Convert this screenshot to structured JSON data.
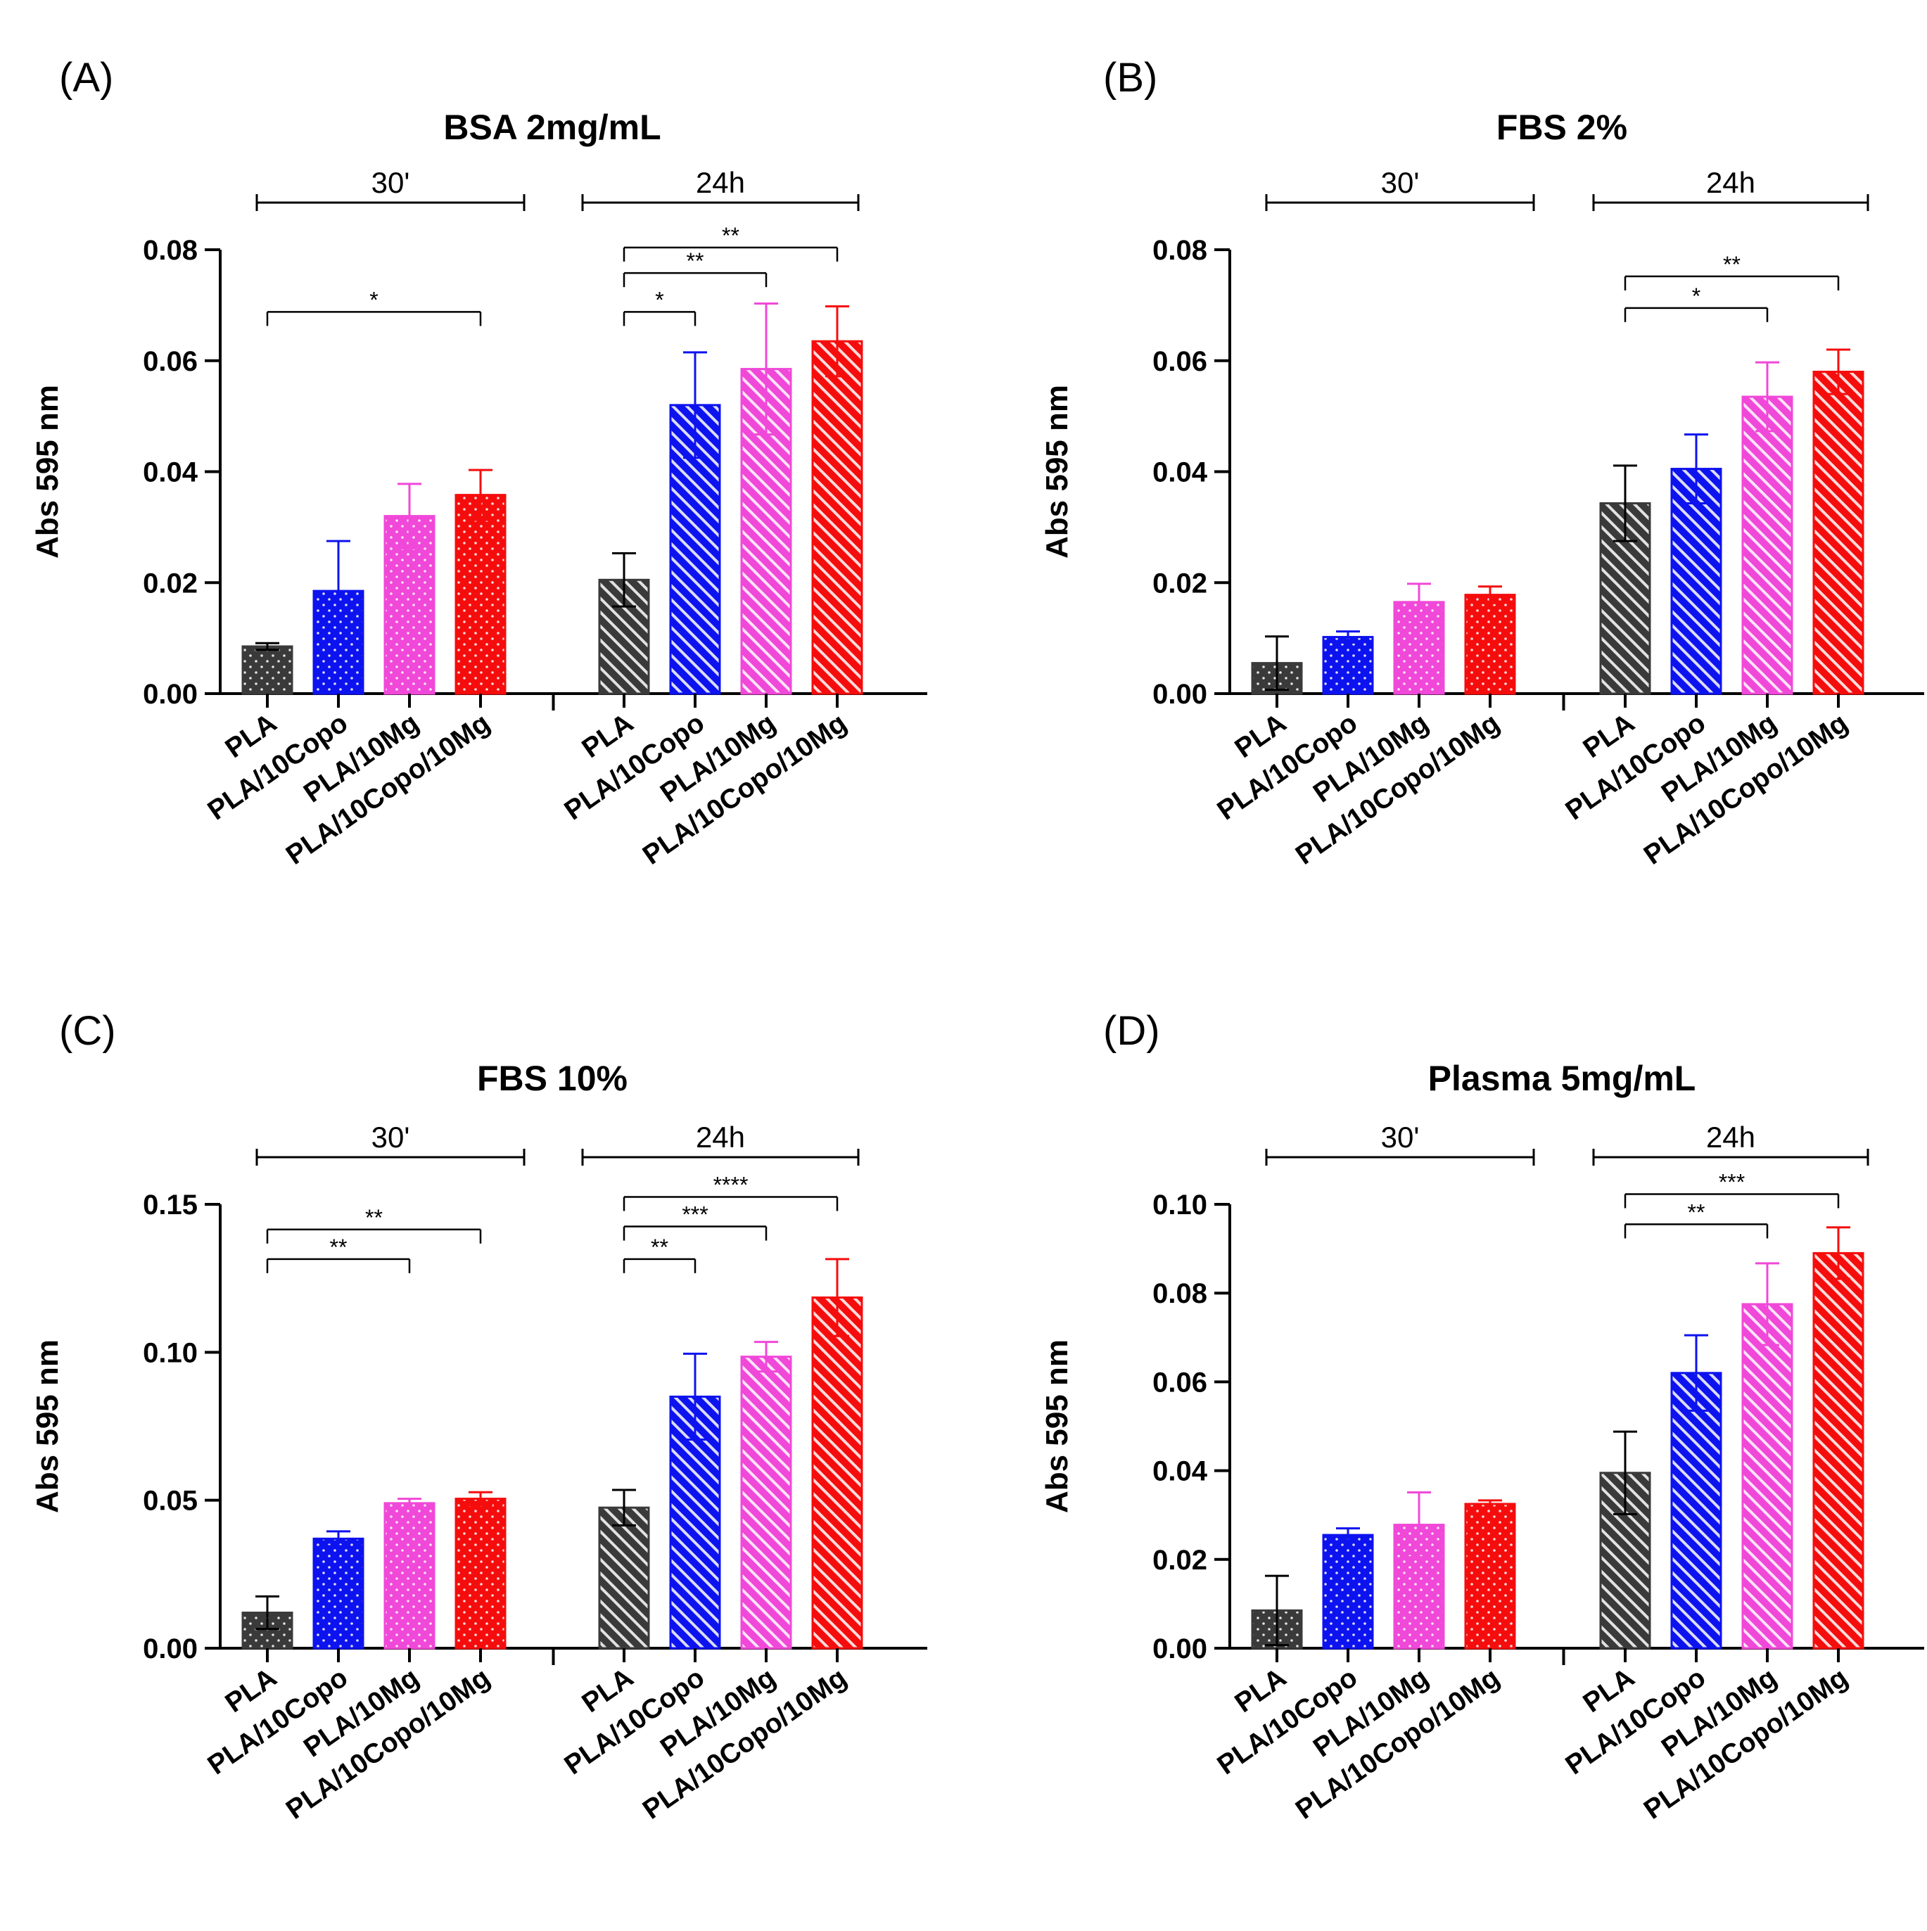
{
  "chart_data": [
    {
      "panel": "(A)",
      "type": "bar",
      "title": "BSA 2mg/mL",
      "ylabel": "Abs 595 nm",
      "ylim": [
        0,
        0.08
      ],
      "yticks": [
        "0.00",
        "0.02",
        "0.04",
        "0.06",
        "0.08"
      ],
      "ytick_values": [
        0,
        0.02,
        0.04,
        0.06,
        0.08
      ],
      "groups": [
        {
          "label": "30'",
          "pattern": "dots",
          "bars": [
            {
              "category": "PLA",
              "value": 0.0085,
              "error": 0.0006
            },
            {
              "category": "PLA/10Copo",
              "value": 0.0185,
              "error": 0.009
            },
            {
              "category": "PLA/10Mg",
              "value": 0.032,
              "error": 0.0058
            },
            {
              "category": "PLA/10Copo/10Mg",
              "value": 0.0358,
              "error": 0.0045
            }
          ]
        },
        {
          "label": "24h",
          "pattern": "hatch",
          "bars": [
            {
              "category": "PLA",
              "value": 0.0205,
              "error": 0.0048
            },
            {
              "category": "PLA/10Copo",
              "value": 0.052,
              "error": 0.0095
            },
            {
              "category": "PLA/10Mg",
              "value": 0.0585,
              "error": 0.0118
            },
            {
              "category": "PLA/10Copo/10Mg",
              "value": 0.0635,
              "error": 0.0063
            }
          ]
        }
      ],
      "significance": [
        {
          "group": 0,
          "from": 0,
          "to": 3,
          "label": "*",
          "y": 0.0688
        },
        {
          "group": 1,
          "from": 0,
          "to": 1,
          "label": "*",
          "y": 0.0688
        },
        {
          "group": 1,
          "from": 0,
          "to": 2,
          "label": "**",
          "y": 0.0758
        },
        {
          "group": 1,
          "from": 0,
          "to": 3,
          "label": "**",
          "y": 0.0804
        }
      ]
    },
    {
      "panel": "(B)",
      "type": "bar",
      "title": "FBS 2%",
      "ylabel": "Abs 595 nm",
      "ylim": [
        0,
        0.08
      ],
      "yticks": [
        "0.00",
        "0.02",
        "0.04",
        "0.06",
        "0.08"
      ],
      "ytick_values": [
        0,
        0.02,
        0.04,
        0.06,
        0.08
      ],
      "groups": [
        {
          "label": "30'",
          "pattern": "dots",
          "bars": [
            {
              "category": "PLA",
              "value": 0.0055,
              "error": 0.0048
            },
            {
              "category": "PLA/10Copo",
              "value": 0.0102,
              "error": 0.001
            },
            {
              "category": "PLA/10Mg",
              "value": 0.0165,
              "error": 0.0033
            },
            {
              "category": "PLA/10Copo/10Mg",
              "value": 0.0178,
              "error": 0.0015
            }
          ]
        },
        {
          "label": "24h",
          "pattern": "hatch",
          "bars": [
            {
              "category": "PLA",
              "value": 0.0343,
              "error": 0.0068
            },
            {
              "category": "PLA/10Copo",
              "value": 0.0405,
              "error": 0.0062
            },
            {
              "category": "PLA/10Mg",
              "value": 0.0535,
              "error": 0.0062
            },
            {
              "category": "PLA/10Copo/10Mg",
              "value": 0.058,
              "error": 0.004
            }
          ]
        }
      ],
      "significance": [
        {
          "group": 1,
          "from": 0,
          "to": 2,
          "label": "*",
          "y": 0.0695
        },
        {
          "group": 1,
          "from": 0,
          "to": 3,
          "label": "**",
          "y": 0.0752
        }
      ]
    },
    {
      "panel": "(C)",
      "type": "bar",
      "title": "FBS 10%",
      "ylabel": "Abs 595 nm",
      "ylim": [
        0,
        0.15
      ],
      "yticks": [
        "0.00",
        "0.05",
        "0.10",
        "0.15"
      ],
      "ytick_values": [
        0,
        0.05,
        0.1,
        0.15
      ],
      "groups": [
        {
          "label": "30'",
          "pattern": "dots",
          "bars": [
            {
              "category": "PLA",
              "value": 0.012,
              "error": 0.0055
            },
            {
              "category": "PLA/10Copo",
              "value": 0.037,
              "error": 0.0025
            },
            {
              "category": "PLA/10Mg",
              "value": 0.049,
              "error": 0.0015
            },
            {
              "category": "PLA/10Copo/10Mg",
              "value": 0.0505,
              "error": 0.0022
            }
          ]
        },
        {
          "label": "24h",
          "pattern": "hatch",
          "bars": [
            {
              "category": "PLA",
              "value": 0.0475,
              "error": 0.006
            },
            {
              "category": "PLA/10Copo",
              "value": 0.085,
              "error": 0.0145
            },
            {
              "category": "PLA/10Mg",
              "value": 0.0985,
              "error": 0.005
            },
            {
              "category": "PLA/10Copo/10Mg",
              "value": 0.1185,
              "error": 0.013
            }
          ]
        }
      ],
      "significance": [
        {
          "group": 0,
          "from": 0,
          "to": 2,
          "label": "**",
          "y": 0.1315
        },
        {
          "group": 0,
          "from": 0,
          "to": 3,
          "label": "**",
          "y": 0.1415
        },
        {
          "group": 1,
          "from": 0,
          "to": 1,
          "label": "**",
          "y": 0.1315
        },
        {
          "group": 1,
          "from": 0,
          "to": 2,
          "label": "***",
          "y": 0.1425
        },
        {
          "group": 1,
          "from": 0,
          "to": 3,
          "label": "****",
          "y": 0.1525
        }
      ]
    },
    {
      "panel": "(D)",
      "type": "bar",
      "title": "Plasma 5mg/mL",
      "ylabel": "Abs 595 nm",
      "ylim": [
        0,
        0.1
      ],
      "yticks": [
        "0.00",
        "0.02",
        "0.04",
        "0.06",
        "0.08",
        "0.10"
      ],
      "ytick_values": [
        0,
        0.02,
        0.04,
        0.06,
        0.08,
        0.1
      ],
      "groups": [
        {
          "label": "30'",
          "pattern": "dots",
          "bars": [
            {
              "category": "PLA",
              "value": 0.0085,
              "error": 0.0078
            },
            {
              "category": "PLA/10Copo",
              "value": 0.0255,
              "error": 0.0015
            },
            {
              "category": "PLA/10Mg",
              "value": 0.0278,
              "error": 0.0073
            },
            {
              "category": "PLA/10Copo/10Mg",
              "value": 0.0325,
              "error": 0.0008
            }
          ]
        },
        {
          "label": "24h",
          "pattern": "hatch",
          "bars": [
            {
              "category": "PLA",
              "value": 0.0395,
              "error": 0.0093
            },
            {
              "category": "PLA/10Copo",
              "value": 0.062,
              "error": 0.0085
            },
            {
              "category": "PLA/10Mg",
              "value": 0.0775,
              "error": 0.0092
            },
            {
              "category": "PLA/10Copo/10Mg",
              "value": 0.089,
              "error": 0.0058
            }
          ]
        }
      ],
      "significance": [
        {
          "group": 1,
          "from": 0,
          "to": 2,
          "label": "**",
          "y": 0.0955
        },
        {
          "group": 1,
          "from": 0,
          "to": 3,
          "label": "***",
          "y": 0.1023
        }
      ]
    }
  ],
  "colors": {
    "PLA": "#3a3a3a",
    "PLA/10Copo": "#0d13ee",
    "PLA/10Mg": "#f048d8",
    "PLA/10Copo/10Mg": "#f50d0d",
    "axis": "#000000"
  }
}
